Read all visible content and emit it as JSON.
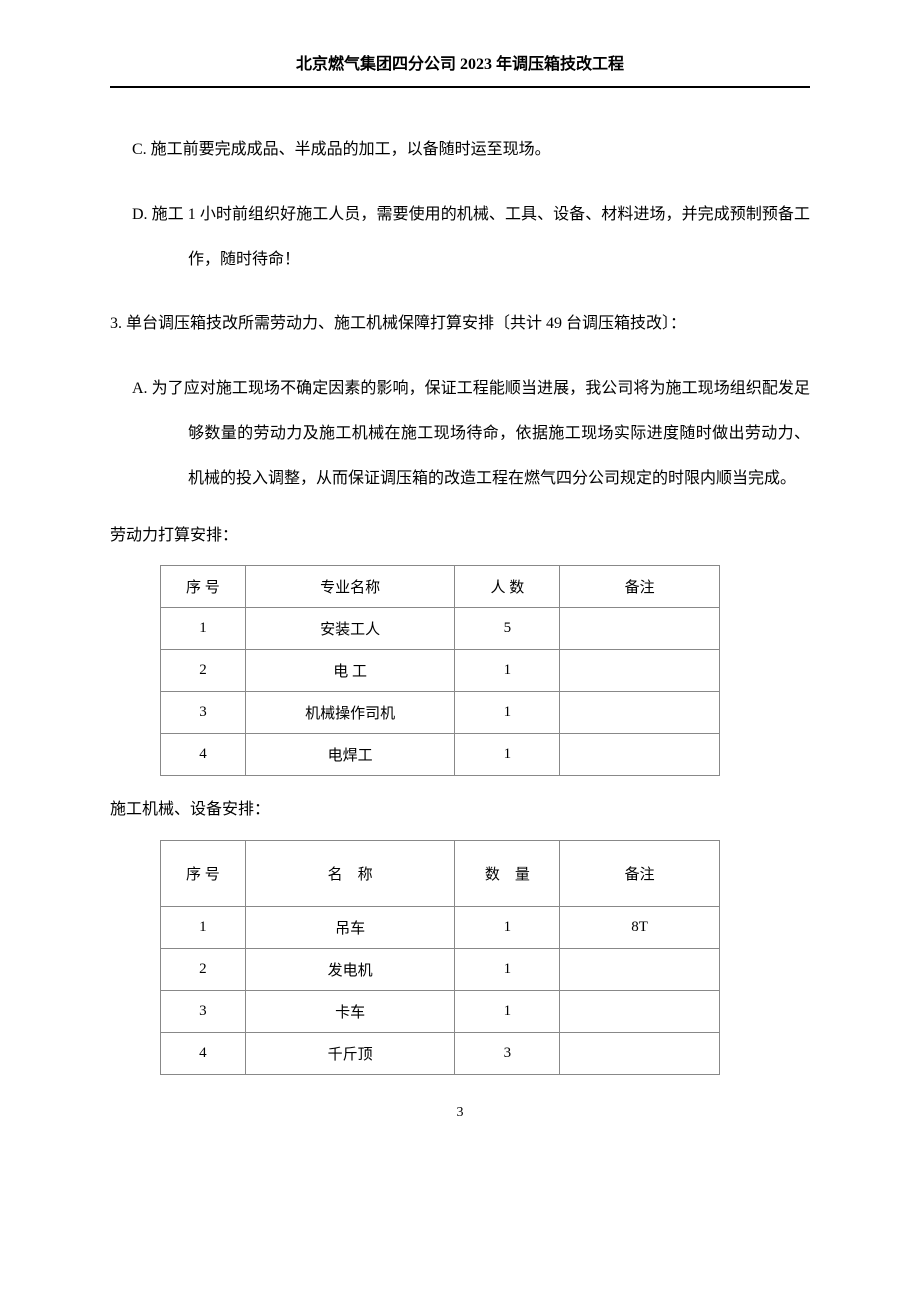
{
  "header": {
    "title": "北京燃气集团四分公司 2023 年调压箱技改工程"
  },
  "paragraphs": {
    "item_c": "C. 施工前要完成成品、半成品的加工，以备随时运至现场。",
    "item_d": "D. 施工 1 小时前组织好施工人员，需要使用的机械、工具、设备、材料进场，并完成预制预备工作，随时待命！",
    "item_3": "3. 单台调压箱技改所需劳动力、施工机械保障打算安排〔共计 49 台调压箱技改〕：",
    "item_a": "A. 为了应对施工现场不确定因素的影响，保证工程能顺当进展，我公司将为施工现场组织配发足够数量的劳动力及施工机械在施工现场待命，依据施工现场实际进度随时做出劳动力、机械的投入调整，从而保证调压箱的改造工程在燃气四分公司规定的时限内顺当完成。"
  },
  "labor_section": {
    "label": "劳动力打算安排：",
    "headers": {
      "seq": "序 号",
      "name": "专业名称",
      "count": "人 数",
      "note": "备注"
    },
    "rows": [
      {
        "seq": "1",
        "name": "安装工人",
        "count": "5",
        "note": ""
      },
      {
        "seq": "2",
        "name": "电 工",
        "count": "1",
        "note": ""
      },
      {
        "seq": "3",
        "name": "机械操作司机",
        "count": "1",
        "note": ""
      },
      {
        "seq": "4",
        "name": "电焊工",
        "count": "1",
        "note": ""
      }
    ]
  },
  "equipment_section": {
    "label": "施工机械、设备安排：",
    "headers": {
      "seq": "序 号",
      "name": "名　称",
      "count": "数　量",
      "note": "备注"
    },
    "rows": [
      {
        "seq": "1",
        "name": "吊车",
        "count": "1",
        "note": "8T"
      },
      {
        "seq": "2",
        "name": "发电机",
        "count": "1",
        "note": ""
      },
      {
        "seq": "3",
        "name": "卡车",
        "count": "1",
        "note": ""
      },
      {
        "seq": "4",
        "name": "千斤顶",
        "count": "3",
        "note": ""
      }
    ]
  },
  "page_number": "3"
}
